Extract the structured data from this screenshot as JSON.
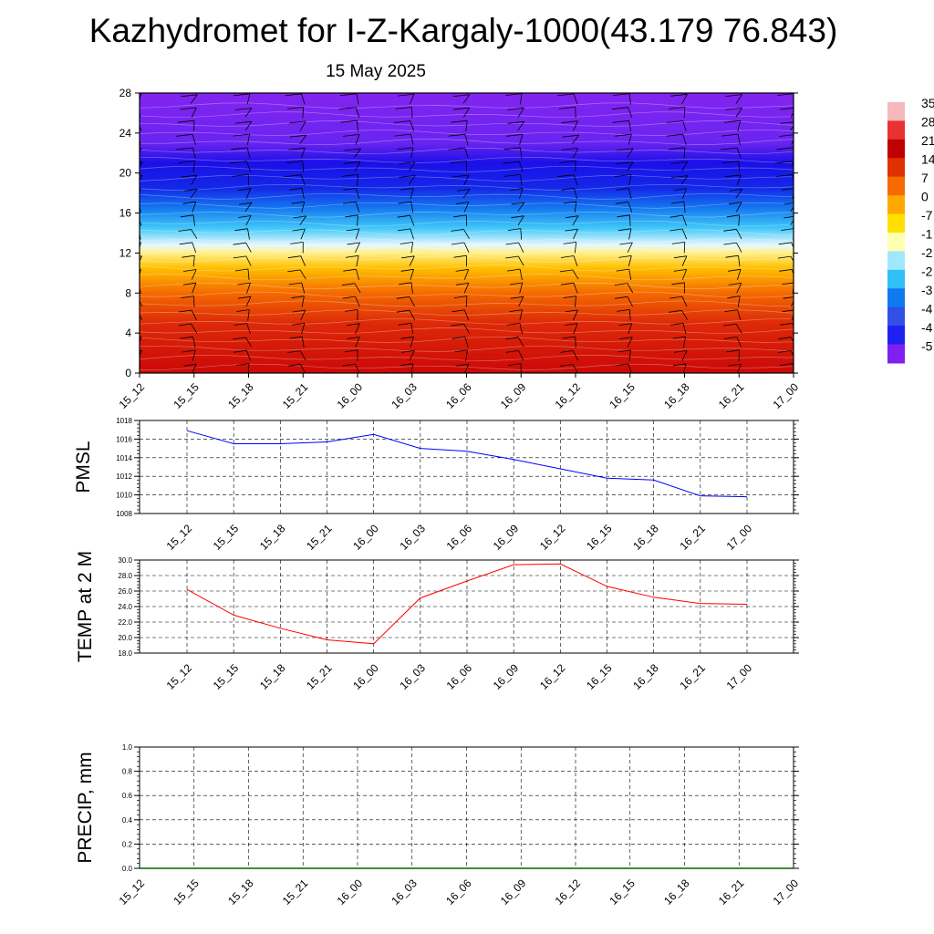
{
  "title": "Kazhydromet for I-Z-Kargaly-1000(43.179 76.843)",
  "subtitle": "15 May 2025",
  "time_labels": [
    "15_12",
    "15_15",
    "15_18",
    "15_21",
    "16_00",
    "16_03",
    "16_06",
    "16_09",
    "16_12",
    "16_15",
    "16_18",
    "16_21",
    "17_00"
  ],
  "chart_data": [
    {
      "type": "heatmap",
      "y_ticks": [
        0,
        4,
        8,
        12,
        16,
        20,
        24,
        28
      ],
      "ylim": [
        0,
        28
      ],
      "x_tick_labels": [
        "15_12",
        "15_15",
        "15_18",
        "15_21",
        "16_00",
        "16_03",
        "16_06",
        "16_09",
        "16_12",
        "16_15",
        "16_18",
        "16_21",
        "17_00"
      ],
      "colorbar_labels": [
        "35",
        "28",
        "21",
        "14",
        "7",
        "0",
        "-7",
        "-1",
        "-2",
        "-2",
        "-3",
        "-4",
        "-4",
        "-5"
      ],
      "colorbar_colors": [
        "#f4b8bd",
        "#e83232",
        "#c00000",
        "#e03000",
        "#f86a00",
        "#ffa800",
        "#ffe000",
        "#ffffb0",
        "#a0e8ff",
        "#30c0f8",
        "#1078f0",
        "#3050e8",
        "#2020f0",
        "#8020f0"
      ],
      "colormap_stops": [
        {
          "value": 0,
          "color": "#cc0808"
        },
        {
          "value": 5,
          "color": "#dd2a08"
        },
        {
          "value": 8,
          "color": "#f46a00"
        },
        {
          "value": 10.5,
          "color": "#ffbf00"
        },
        {
          "value": 12,
          "color": "#fff08a"
        },
        {
          "value": 12.8,
          "color": "#e8f8ff"
        },
        {
          "value": 14.5,
          "color": "#40c8f8"
        },
        {
          "value": 16.5,
          "color": "#1478f0"
        },
        {
          "value": 18.5,
          "color": "#1428e8"
        },
        {
          "value": 21,
          "color": "#1a10e8"
        },
        {
          "value": 23,
          "color": "#6a24f0"
        },
        {
          "value": 28,
          "color": "#8424f0"
        }
      ]
    },
    {
      "type": "line",
      "ylabel": "PMSL",
      "ylim": [
        1008,
        1018
      ],
      "y_ticks": [
        1008,
        1010,
        1012,
        1014,
        1016,
        1018
      ],
      "categories": [
        "15_12",
        "15_15",
        "15_18",
        "15_21",
        "16_00",
        "16_03",
        "16_06",
        "16_09",
        "16_12",
        "16_15",
        "16_18",
        "16_21",
        "17_00"
      ],
      "series": [
        {
          "values": [
            1016.9,
            1015.5,
            1015.5,
            1015.7,
            1016.5,
            1015.0,
            1014.7,
            1013.8,
            1012.8,
            1011.8,
            1011.6,
            1009.9,
            1009.8
          ],
          "color": "#0000ff"
        }
      ]
    },
    {
      "type": "line",
      "ylabel": "TEMP at 2 M",
      "ylim": [
        18,
        30
      ],
      "y_ticks": [
        18.0,
        20.0,
        22.0,
        24.0,
        26.0,
        28.0,
        30.0
      ],
      "categories": [
        "15_12",
        "15_15",
        "15_18",
        "15_21",
        "16_00",
        "16_03",
        "16_06",
        "16_09",
        "16_12",
        "16_15",
        "16_18",
        "16_21",
        "17_00"
      ],
      "series": [
        {
          "values": [
            26.2,
            22.9,
            21.2,
            19.7,
            19.2,
            25.1,
            27.3,
            29.4,
            29.5,
            26.6,
            25.2,
            24.4,
            24.3
          ],
          "color": "#ff0000"
        }
      ]
    },
    {
      "type": "line",
      "ylabel": "PRECIP, mm",
      "ylim": [
        0,
        1
      ],
      "y_ticks": [
        0.0,
        0.2,
        0.4,
        0.6,
        0.8,
        1.0
      ],
      "categories": [
        "15_12",
        "15_15",
        "15_18",
        "15_21",
        "16_00",
        "16_03",
        "16_06",
        "16_09",
        "16_12",
        "16_15",
        "16_18",
        "16_21",
        "17_00"
      ],
      "series": [
        {
          "values": [
            0,
            0,
            0,
            0,
            0,
            0,
            0,
            0,
            0,
            0,
            0,
            0,
            0
          ],
          "color": "#006400"
        }
      ]
    }
  ]
}
